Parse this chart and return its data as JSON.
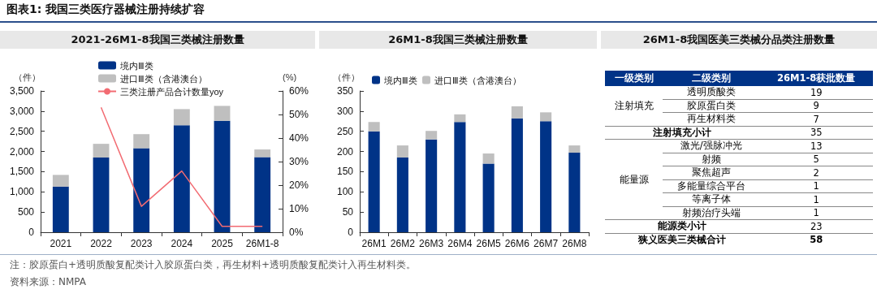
{
  "chart_data": [
    {
      "type": "bar",
      "title": "2021-26M1-8我国三类械注册数量",
      "stacked": true,
      "legend": "top left",
      "grid": false,
      "marker": "none",
      "line_style": "solid",
      "categories": [
        "2021",
        "2022",
        "2023",
        "2024",
        "2025",
        "26M1-8"
      ],
      "series": [
        {
          "name": "境内Ⅲ类",
          "color": "#003387",
          "values": [
            1130,
            1850,
            2080,
            2650,
            2760,
            1860
          ]
        },
        {
          "name": "进口Ⅲ类（含港澳台）",
          "color": "#bfbfbf",
          "values": [
            290,
            340,
            350,
            400,
            370,
            190
          ]
        },
        {
          "name": "三类注册产品合计数量yoy",
          "type": "line",
          "axis": "y2",
          "color": "#f26b72",
          "values": [
            null,
            53,
            11,
            26,
            2.5,
            2.5
          ]
        }
      ],
      "ylabel": "（件）",
      "y2label": "(%)",
      "ylim": [
        0,
        3500
      ],
      "yticks": [
        {
          "value": 0,
          "label": "0"
        },
        {
          "value": 500,
          "label": "500"
        },
        {
          "value": 1000,
          "label": "1,000"
        },
        {
          "value": 1500,
          "label": "1,500"
        },
        {
          "value": 2000,
          "label": "2,000"
        },
        {
          "value": 2500,
          "label": "2,500"
        },
        {
          "value": 3000,
          "label": "3,000"
        },
        {
          "value": 3500,
          "label": "3,500"
        }
      ],
      "y2lim": [
        0,
        60
      ],
      "y2ticks": [
        {
          "value": 0,
          "label": "0%"
        },
        {
          "value": 10,
          "label": "10%"
        },
        {
          "value": 20,
          "label": "20%"
        },
        {
          "value": 30,
          "label": "30%"
        },
        {
          "value": 40,
          "label": "40%"
        },
        {
          "value": 50,
          "label": "50%"
        },
        {
          "value": 60,
          "label": "60%"
        }
      ],
      "annotations": [
        "图表1:   我国三类医疗器械注册持续扩容",
        "注：胶原蛋白+透明质酸复配类计入胶原蛋白类，再生材料+透明质酸复配类计入再生材料类。",
        "资料来源：NMPA"
      ]
    },
    {
      "type": "bar",
      "title": "26M1-8我国三类械注册数量",
      "stacked": true,
      "legend": "top",
      "grid": false,
      "categories": [
        "26M1",
        "26M2",
        "26M3",
        "26M4",
        "26M5",
        "26M6",
        "26M7",
        "26M8"
      ],
      "series": [
        {
          "name": "境内Ⅲ类",
          "color": "#003387",
          "values": [
            250,
            185,
            230,
            273,
            170,
            282,
            275,
            197
          ]
        },
        {
          "name": "进口Ⅲ类（含港澳台）",
          "color": "#bfbfbf",
          "values": [
            23,
            30,
            21,
            19,
            25,
            30,
            22,
            18
          ]
        }
      ],
      "ylabel": "（件）",
      "ylim": [
        0,
        350
      ],
      "yticks": [
        0,
        50,
        100,
        150,
        200,
        250,
        300,
        350
      ]
    },
    {
      "type": "other",
      "title": "26M1-8我国医美三类械分品类注册数量",
      "categories": [
        "一级类别",
        "二级类别",
        "26M1-8获批数量"
      ],
      "cell_labels": [
        [
          "注射填充",
          "透明质酸类",
          "19"
        ],
        [
          null,
          "胶原蛋白类",
          "9"
        ],
        [
          null,
          "再生材料类",
          "7"
        ],
        [
          "注射填充小计",
          null,
          "35"
        ],
        [
          "能量源",
          "激光/强脉冲光",
          "13"
        ],
        [
          null,
          "射频",
          "5"
        ],
        [
          null,
          "聚焦超声",
          "2"
        ],
        [
          null,
          "多能量综合平台",
          "1"
        ],
        [
          null,
          "等离子体",
          "1"
        ],
        [
          null,
          "射频治疗头端",
          "1"
        ],
        [
          "能源类小计",
          null,
          "23"
        ],
        [
          "狭义医美三类械合计",
          null,
          "58"
        ]
      ]
    }
  ]
}
